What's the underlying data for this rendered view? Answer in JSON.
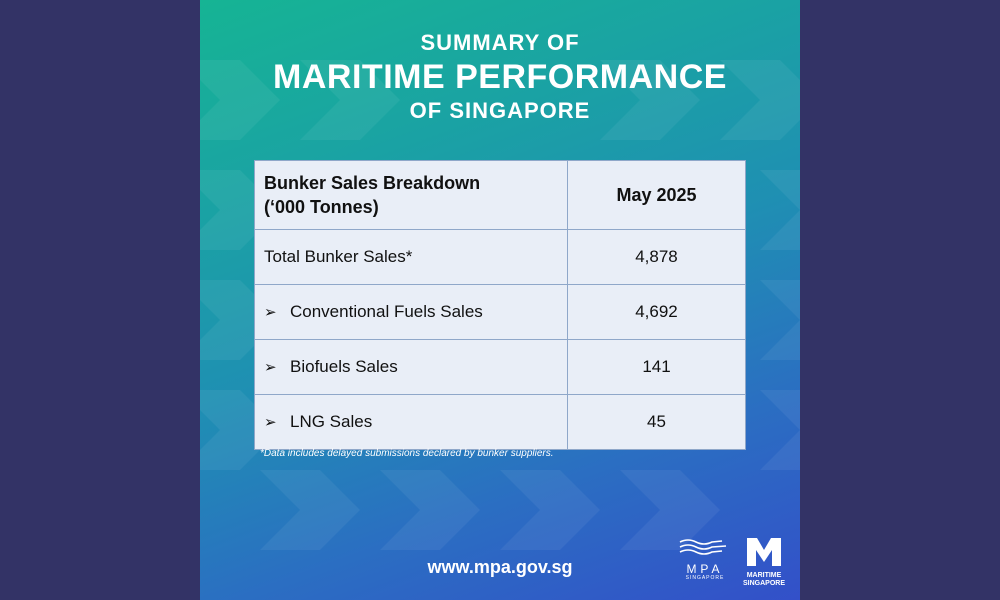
{
  "header": {
    "line1": "SUMMARY OF",
    "line2": "MARITIME PERFORMANCE",
    "line3": "OF SINGAPORE"
  },
  "table": {
    "col1_header_line1": "Bunker Sales Breakdown",
    "col1_header_line2": "(‘000 Tonnes)",
    "col2_header": "May 2025",
    "rows": [
      {
        "label": "Total Bunker Sales*",
        "value": "4,878",
        "bullet": ""
      },
      {
        "label": "Conventional Fuels Sales",
        "value": "4,692",
        "bullet": "➢"
      },
      {
        "label": "Biofuels Sales",
        "value": "141",
        "bullet": "➢"
      },
      {
        "label": "LNG Sales",
        "value": "45",
        "bullet": "➢"
      }
    ]
  },
  "footnote": "*Data includes delayed submissions declared by bunker suppliers.",
  "website": "www.mpa.gov.sg",
  "logos": {
    "mpa_letters": "MPA",
    "mpa_sub": "SINGAPORE",
    "ms_line1": "MARITIME",
    "ms_line2": "SINGAPORE"
  },
  "colors": {
    "outer_background": "#333366",
    "gradient_start": "#16b494",
    "gradient_end": "#3350c9",
    "table_background": "#e9eef7"
  }
}
